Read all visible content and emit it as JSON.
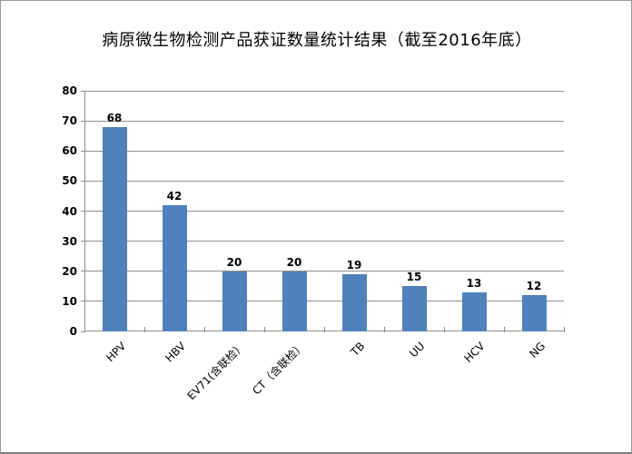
{
  "chart_data": {
    "type": "bar",
    "title": "病原微生物检测产品获证数量统计结果（截至2016年底）",
    "categories": [
      "HPV",
      "HBV",
      "EV71(含联检）",
      "CT（含联检）",
      "TB",
      "UU",
      "HCV",
      "NG"
    ],
    "values": [
      68,
      42,
      20,
      20,
      19,
      15,
      13,
      12
    ],
    "xlabel": "",
    "ylabel": "",
    "ylim": [
      0,
      80
    ],
    "yticks": [
      0,
      10,
      20,
      30,
      40,
      50,
      60,
      70,
      80
    ],
    "grid": true,
    "legend": "none",
    "colors": {
      "bar": "#4f81bd",
      "gridline": "#8e8e8e",
      "axis": "#8e8e8e",
      "text": "#000000",
      "background": "#ffffff"
    }
  }
}
